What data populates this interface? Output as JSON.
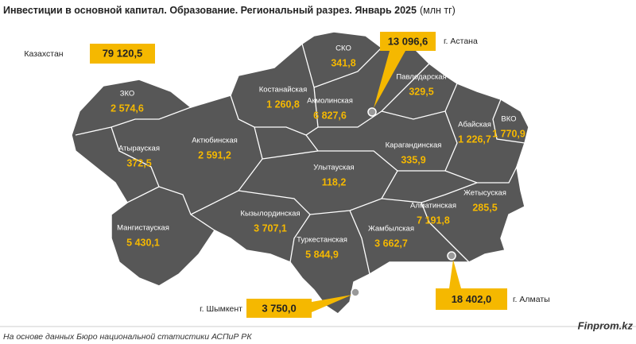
{
  "title": "Инвестиции в основной капитал. Образование. Региональный разрез. Январь 2025",
  "unit": "(млн тг)",
  "total": {
    "name": "Казахстан",
    "value": "79 120,5"
  },
  "regions": [
    {
      "name": "ЗКО",
      "value": "2 574,6"
    },
    {
      "name": "Атырауская",
      "value": "372,5"
    },
    {
      "name": "Актюбинская",
      "value": "2 591,2"
    },
    {
      "name": "Мангистауская",
      "value": "5 430,1"
    },
    {
      "name": "Костанайская",
      "value": "1 260,8"
    },
    {
      "name": "СКО",
      "value": "341,8"
    },
    {
      "name": "Акмолинская",
      "value": "6 827,6"
    },
    {
      "name": "Павлодарская",
      "value": "329,5"
    },
    {
      "name": "Абайская",
      "value": "1 226,7"
    },
    {
      "name": "ВКО",
      "value": "1 770,9"
    },
    {
      "name": "Карагандинская",
      "value": "335,9"
    },
    {
      "name": "Улытауская",
      "value": "118,2"
    },
    {
      "name": "Жетысуская",
      "value": "285,5"
    },
    {
      "name": "Алматинская",
      "value": "7 191,8"
    },
    {
      "name": "Кызылординская",
      "value": "3 707,1"
    },
    {
      "name": "Жамбылская",
      "value": "3 662,7"
    },
    {
      "name": "Туркестанская",
      "value": "5 844,9"
    }
  ],
  "cities": [
    {
      "name": "г. Астана",
      "value": "13 096,6"
    },
    {
      "name": "г. Алматы",
      "value": "18 402,0"
    },
    {
      "name": "г. Шымкент",
      "value": "3 750,0"
    }
  ],
  "source": "На основе данных Бюро национальной статистики АСПиР РК",
  "brand": "Finprom.kz"
}
